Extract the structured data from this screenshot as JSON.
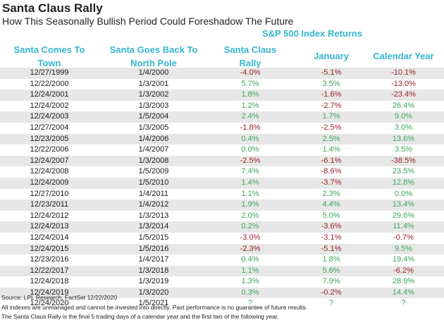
{
  "title": "Santa Claus Rally",
  "subtitle": "How This Seasonally Bullish Period Could Foreshadow The Future",
  "chart_data": {
    "type": "table",
    "group_header": "S&P 500 Index Returns",
    "columns": [
      "Santa Comes To\nTown",
      "Santa Goes Back To\nNorth Pole",
      "Santa Claus\nRally",
      "January",
      "Calendar Year"
    ],
    "rows": [
      [
        "12/27/1999",
        "1/4/2000",
        "-4.0%",
        "-5.1%",
        "-10.1%"
      ],
      [
        "12/22/2000",
        "1/3/2001",
        "5.7%",
        "3.5%",
        "-13.0%"
      ],
      [
        "12/24/2001",
        "1/3/2002",
        "1.8%",
        "-1.6%",
        "-23.4%"
      ],
      [
        "12/24/2002",
        "1/3/2003",
        "1.2%",
        "-2.7%",
        "26.4%"
      ],
      [
        "12/24/2003",
        "1/5/2004",
        "2.4%",
        "1.7%",
        "9.0%"
      ],
      [
        "12/27/2004",
        "1/3/2005",
        "-1.8%",
        "-2.5%",
        "3.0%"
      ],
      [
        "12/23/2005",
        "1/4/2006",
        "0.4%",
        "2.5%",
        "13.6%"
      ],
      [
        "12/22/2006",
        "1/4/2007",
        "0.0%",
        "1.4%",
        "3.5%"
      ],
      [
        "12/24/2007",
        "1/3/2008",
        "-2.5%",
        "-6.1%",
        "-38.5%"
      ],
      [
        "12/24/2008",
        "1/5/2009",
        "7.4%",
        "-8.6%",
        "23.5%"
      ],
      [
        "12/24/2009",
        "1/5/2010",
        "1.4%",
        "-3.7%",
        "12.8%"
      ],
      [
        "12/27/2010",
        "1/4/2011",
        "1.1%",
        "2.3%",
        "0.0%"
      ],
      [
        "12/23/2011",
        "1/4/2012",
        "1.9%",
        "4.4%",
        "13.4%"
      ],
      [
        "12/24/2012",
        "1/3/2013",
        "2.0%",
        "5.0%",
        "29.6%"
      ],
      [
        "12/24/2013",
        "1/3/2014",
        "0.2%",
        "-3.6%",
        "11.4%"
      ],
      [
        "12/24/2014",
        "1/5/2015",
        "-3.0%",
        "-3.1%",
        "-0.7%"
      ],
      [
        "12/24/2015",
        "1/5/2016",
        "-2.3%",
        "-5.1%",
        "9.5%"
      ],
      [
        "12/23/2016",
        "1/4/2017",
        "0.4%",
        "1.8%",
        "19.4%"
      ],
      [
        "12/22/2017",
        "1/3/2018",
        "1.1%",
        "5.6%",
        "-6.2%"
      ],
      [
        "12/24/2018",
        "1/3/2019",
        "1.3%",
        "7.9%",
        "28.9%"
      ],
      [
        "12/24/2019",
        "1/3/2020",
        "0.3%",
        "-0.2%",
        "14.4%"
      ],
      [
        "12/24/2020",
        "1/5/2021",
        "?",
        "?",
        "?"
      ]
    ],
    "colors": {
      "header": "#35b6cf",
      "positive": "#3aa85a",
      "negative": "#9a1f2a",
      "stripe": "#e7e7e7"
    }
  },
  "notes": {
    "source": "Source: LPL Research, FactSet 12/22/2020",
    "disclaimer": "All indexes are unmanaged and cannot be invested into directly. Past performance is no guarantee of future results.",
    "definition": "The Santa Claus Rally is the final 5 trading days of a calendar year and the first two of the following year."
  }
}
